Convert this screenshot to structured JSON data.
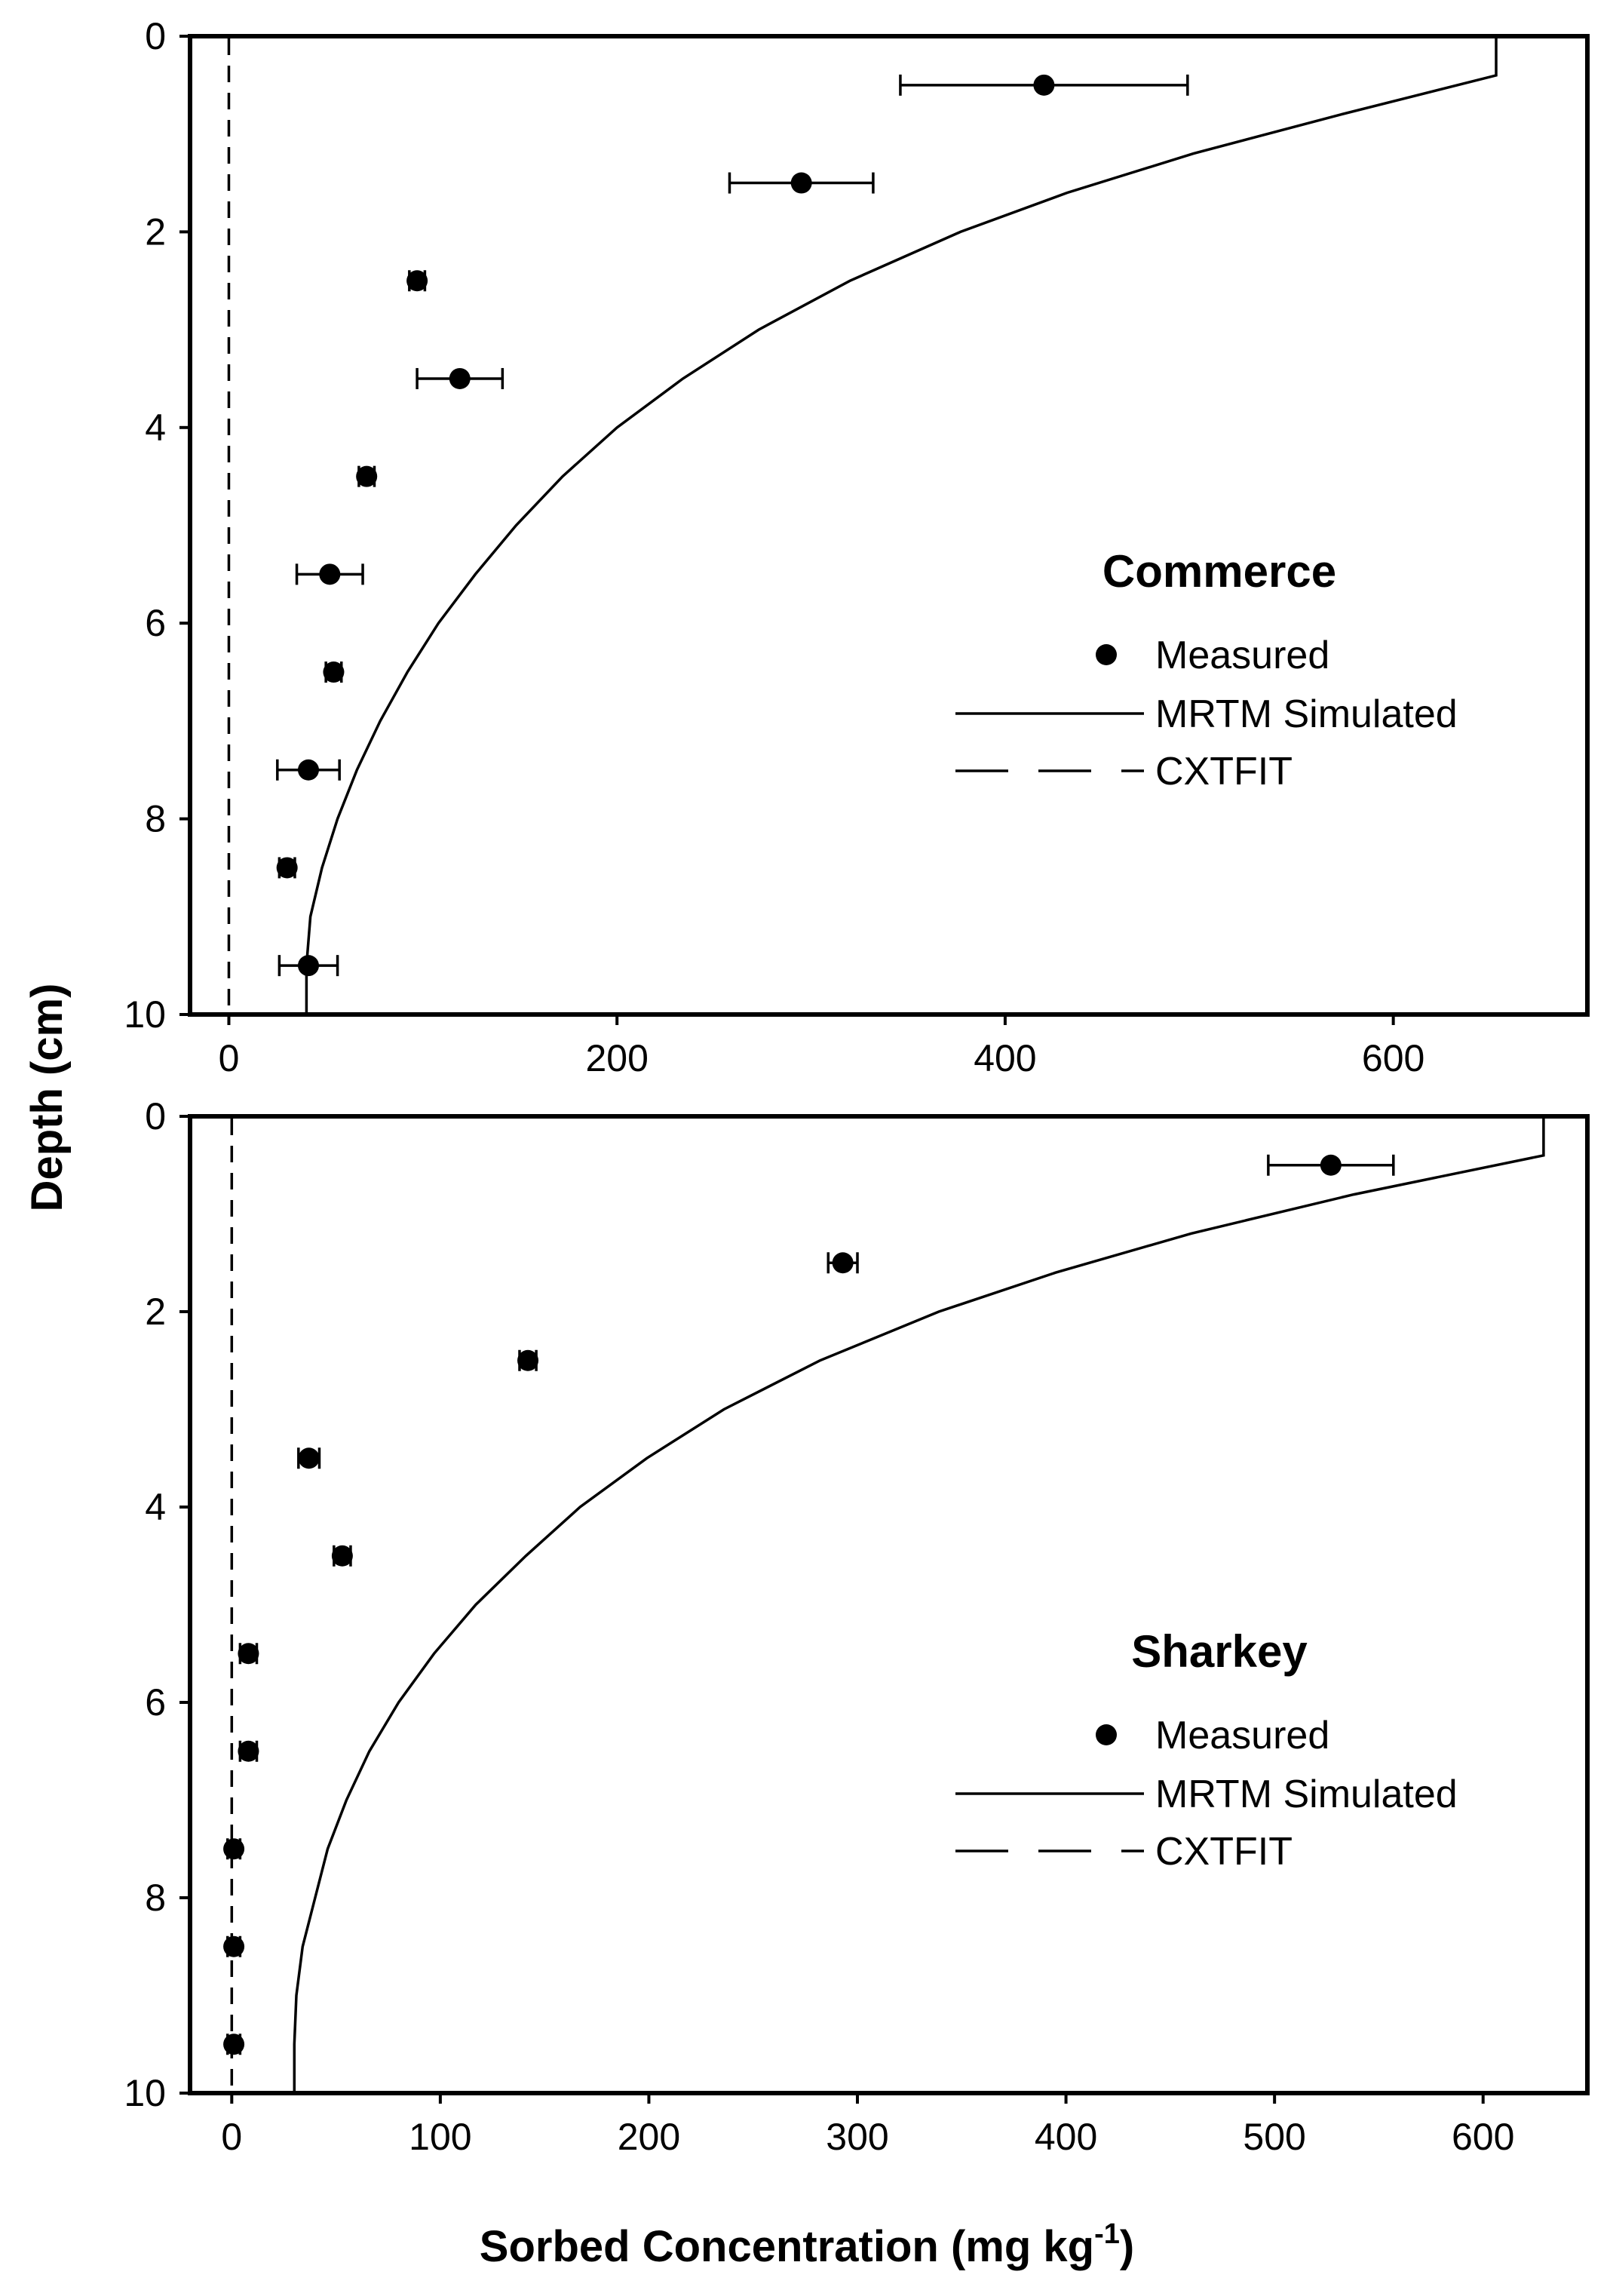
{
  "figure": {
    "ylabel": "Depth (cm)",
    "xlabel_main": "Sorbed Concentration (mg kg",
    "xlabel_sup": "-1",
    "xlabel_close": ")"
  },
  "chart_data": [
    {
      "type": "scatter",
      "panel": "top",
      "legend_title": "Commerce",
      "legend": [
        "Measured",
        "MRTM Simulated",
        "CXTFIT"
      ],
      "legend_position": "right-middle",
      "xlim": [
        -20,
        700
      ],
      "ylim": [
        10,
        0
      ],
      "xticks": [
        0,
        200,
        400,
        600
      ],
      "yticks": [
        0,
        2,
        4,
        6,
        8,
        10
      ],
      "measured": [
        {
          "depth": 0.5,
          "value": 420,
          "err": 74
        },
        {
          "depth": 1.5,
          "value": 295,
          "err": 37
        },
        {
          "depth": 2.5,
          "value": 97,
          "err": 4
        },
        {
          "depth": 3.5,
          "value": 119,
          "err": 22
        },
        {
          "depth": 4.5,
          "value": 71,
          "err": 4
        },
        {
          "depth": 5.5,
          "value": 52,
          "err": 17
        },
        {
          "depth": 6.5,
          "value": 54,
          "err": 4
        },
        {
          "depth": 7.5,
          "value": 41,
          "err": 16
        },
        {
          "depth": 8.5,
          "value": 30,
          "err": 4
        },
        {
          "depth": 9.5,
          "value": 41,
          "err": 15
        }
      ],
      "mrtm_simulated": {
        "depth": [
          0,
          0.4,
          0.8,
          1.2,
          1.6,
          2.0,
          2.5,
          3.0,
          3.5,
          4.0,
          4.5,
          5.0,
          5.5,
          6.0,
          6.5,
          7.0,
          7.5,
          8.0,
          8.5,
          9.0,
          9.5,
          10
        ],
        "value": [
          653,
          653,
          573,
          497,
          432,
          377,
          320,
          273,
          234,
          200,
          172,
          148,
          127,
          108,
          92,
          78,
          66,
          56,
          48,
          42,
          40,
          40
        ]
      },
      "cxtfit": {
        "depth": [
          0,
          10
        ],
        "value": [
          0,
          0
        ]
      }
    },
    {
      "type": "scatter",
      "panel": "bottom",
      "legend_title": "Sharkey",
      "legend": [
        "Measured",
        "MRTM Simulated",
        "CXTFIT"
      ],
      "legend_position": "right-middle",
      "xlim": [
        -20,
        650
      ],
      "ylim": [
        10,
        0
      ],
      "xticks": [
        0,
        100,
        200,
        300,
        400,
        500,
        600
      ],
      "yticks": [
        0,
        2,
        4,
        6,
        8,
        10
      ],
      "measured": [
        {
          "depth": 0.5,
          "value": 527,
          "err": 30
        },
        {
          "depth": 1.5,
          "value": 293,
          "err": 7
        },
        {
          "depth": 2.5,
          "value": 142,
          "err": 4
        },
        {
          "depth": 3.5,
          "value": 37,
          "err": 5
        },
        {
          "depth": 4.5,
          "value": 53,
          "err": 4
        },
        {
          "depth": 5.5,
          "value": 8,
          "err": 4
        },
        {
          "depth": 6.5,
          "value": 8,
          "err": 4
        },
        {
          "depth": 7.5,
          "value": 1,
          "err": 3
        },
        {
          "depth": 8.5,
          "value": 1,
          "err": 3
        },
        {
          "depth": 9.5,
          "value": 1,
          "err": 3
        }
      ],
      "mrtm_simulated": {
        "depth": [
          0,
          0.4,
          0.8,
          1.2,
          1.6,
          2.0,
          2.5,
          3.0,
          3.5,
          4.0,
          4.5,
          5.0,
          5.5,
          6.0,
          6.5,
          7.0,
          7.5,
          8.0,
          8.5,
          9.0,
          9.5,
          10
        ],
        "value": [
          629,
          629,
          538,
          460,
          395,
          339,
          282,
          236,
          199,
          167,
          141,
          117,
          97,
          80,
          66,
          55,
          46,
          40,
          34,
          31,
          30,
          30
        ]
      },
      "cxtfit": {
        "depth": [
          0,
          10
        ],
        "value": [
          0,
          0
        ]
      }
    }
  ]
}
